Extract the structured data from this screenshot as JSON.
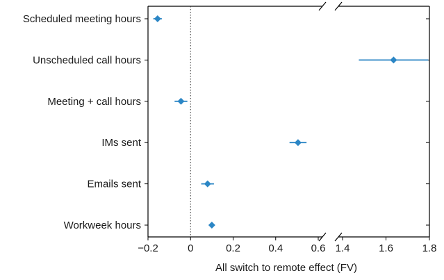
{
  "chart_data": {
    "type": "scatter",
    "subtype": "dot-and-whisker",
    "orientation": "horizontal",
    "xlabel": "All switch to remote effect (FV)",
    "ylabel": "",
    "title": "",
    "axis_break": true,
    "xlim_left": [
      -0.2,
      0.6
    ],
    "xlim_right": [
      1.4,
      1.8
    ],
    "ticks_left": [
      "−0.2",
      "0",
      "0.2",
      "0.4",
      "0.6"
    ],
    "tick_values_left": [
      -0.2,
      0,
      0.2,
      0.4,
      0.6
    ],
    "ticks_right": [
      "1.4",
      "1.6",
      "1.8"
    ],
    "tick_values_right": [
      1.4,
      1.6,
      1.8
    ],
    "reference_line": 0,
    "marker": "diamond",
    "color": "#2b86c5",
    "grid": false,
    "categories": [
      "Scheduled meeting hours",
      "Unscheduled call hours",
      "Meeting + call hours",
      "IMs sent",
      "Emails sent",
      "Workweek hours"
    ],
    "values": [
      -0.155,
      1.635,
      -0.045,
      0.505,
      0.08,
      0.1
    ],
    "ci_low": [
      -0.175,
      1.475,
      -0.075,
      0.465,
      0.05,
      0.09
    ],
    "ci_high": [
      -0.135,
      1.795,
      -0.015,
      0.545,
      0.11,
      0.11
    ]
  }
}
